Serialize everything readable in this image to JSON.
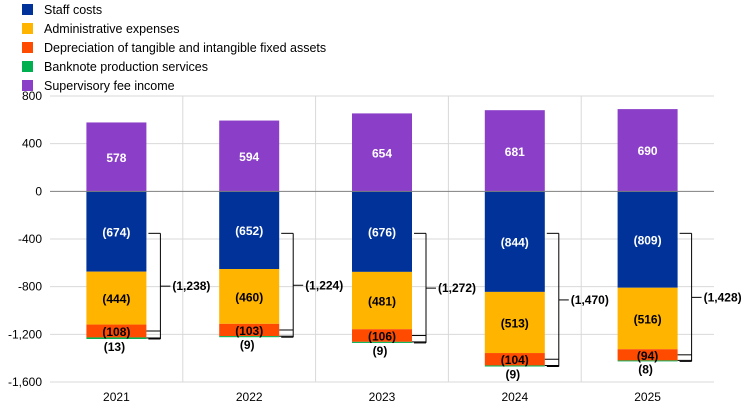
{
  "chart_data": {
    "type": "bar",
    "stacked": true,
    "categories": [
      "2021",
      "2022",
      "2023",
      "2024",
      "2025"
    ],
    "series": [
      {
        "key": "supervisory",
        "name": "Supervisory fee income",
        "color": "#8B3FC8",
        "values": [
          578,
          594,
          654,
          681,
          690
        ],
        "labels": [
          "578",
          "594",
          "654",
          "681",
          "690"
        ]
      },
      {
        "key": "staff",
        "name": "Staff costs",
        "color": "#003299",
        "values": [
          -674,
          -652,
          -676,
          -844,
          -809
        ],
        "labels": [
          "(674)",
          "(652)",
          "(676)",
          "(844)",
          "(809)"
        ]
      },
      {
        "key": "admin",
        "name": "Administrative expenses",
        "color": "#FFB400",
        "values": [
          -444,
          -460,
          -481,
          -513,
          -516
        ],
        "labels": [
          "(444)",
          "(460)",
          "(481)",
          "(513)",
          "(516)"
        ]
      },
      {
        "key": "depr",
        "name": "Depreciation of tangible and intangible fixed assets",
        "color": "#FF4B00",
        "values": [
          -108,
          -103,
          -106,
          -104,
          -94
        ],
        "labels": [
          "(108)",
          "(103)",
          "(106)",
          "(104)",
          "(94)"
        ]
      },
      {
        "key": "banknote",
        "name": "Banknote production services",
        "color": "#00B050",
        "values": [
          -13,
          -9,
          -9,
          -9,
          -8
        ],
        "labels": [
          "(13)",
          "(9)",
          "(9)",
          "(9)",
          "(8)"
        ]
      }
    ],
    "totals": {
      "values": [
        -1238,
        -1224,
        -1272,
        -1470,
        -1428
      ],
      "labels": [
        "(1,238)",
        "(1,224)",
        "(1,272)",
        "(1,470)",
        "(1,428)"
      ]
    },
    "ylim": [
      -1600,
      800
    ],
    "yticks": [
      800,
      400,
      0,
      -400,
      -800,
      -1200,
      -1600
    ],
    "ytick_labels": [
      "800",
      "400",
      "0",
      "-400",
      "-800",
      "-1,200",
      "-1,600"
    ],
    "xlabel": "",
    "ylabel": "",
    "grid": true,
    "legend_position": "top-left"
  },
  "legend": [
    {
      "label": "Staff costs",
      "color": "#003299"
    },
    {
      "label": "Administrative expenses",
      "color": "#FFB400"
    },
    {
      "label": "Depreciation of tangible and intangible fixed assets",
      "color": "#FF4B00"
    },
    {
      "label": "Banknote production services",
      "color": "#00B050"
    },
    {
      "label": "Supervisory fee income",
      "color": "#8B3FC8"
    }
  ]
}
